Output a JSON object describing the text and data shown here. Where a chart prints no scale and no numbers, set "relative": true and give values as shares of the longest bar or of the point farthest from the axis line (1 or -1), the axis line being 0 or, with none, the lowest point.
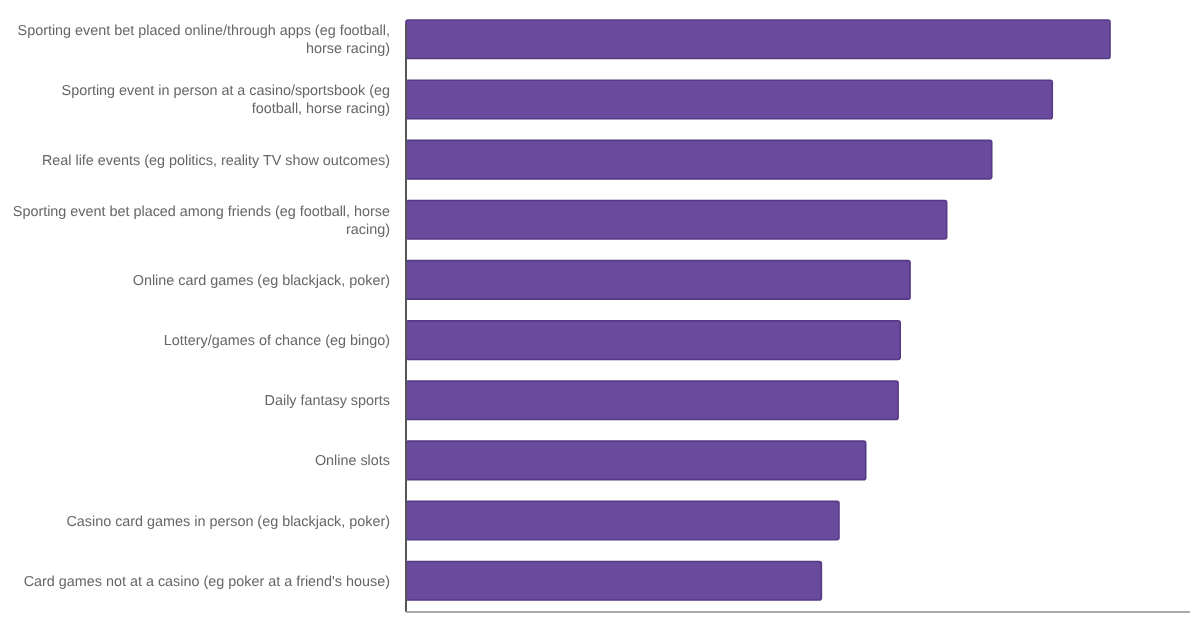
{
  "chart_data": {
    "type": "bar",
    "orientation": "horizontal",
    "relative": true,
    "categories": [
      "Sporting event bet placed online/through apps (eg football, horse racing)",
      "Sporting event in person at a casino/sportsbook (eg football, horse racing)",
      "Real life events (eg politics, reality TV show outcomes)",
      "Sporting event bet placed among friends (eg football, horse racing)",
      "Online card games (eg blackjack, poker)",
      "Lottery/games of chance (eg bingo)",
      "Daily fantasy sports",
      "Online slots",
      "Casino card games in person (eg blackjack, poker)",
      "Card games not at a casino (eg poker at a friend's house)"
    ],
    "values": [
      1,
      0.918,
      0.832,
      0.768,
      0.716,
      0.702,
      0.699,
      0.653,
      0.615,
      0.59
    ],
    "color": "#6a4a9c"
  }
}
